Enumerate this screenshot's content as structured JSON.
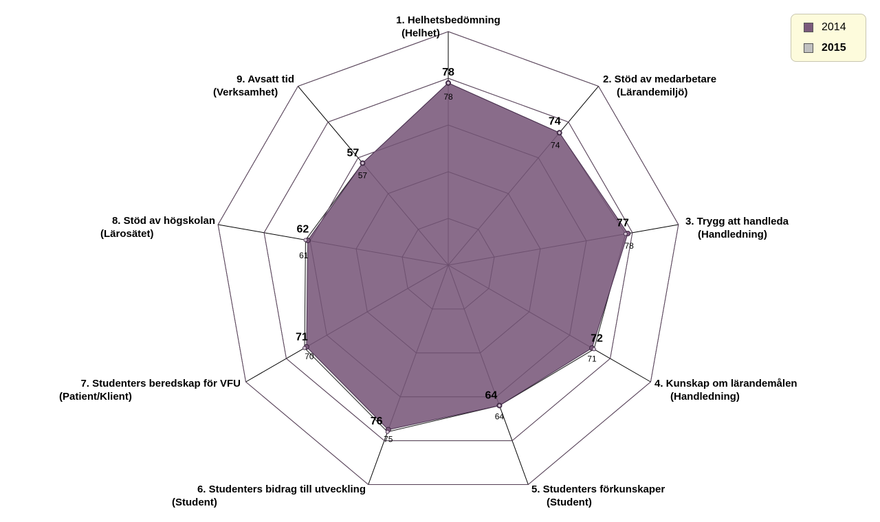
{
  "chart_data": {
    "type": "radar",
    "max": 100,
    "rings": 5,
    "axes": [
      {
        "line1": "1. Helhetsbedömning",
        "line2": "(Helhet)"
      },
      {
        "line1": "2. Stöd av medarbetare",
        "line2": "(Lärandemiljö)"
      },
      {
        "line1": "3. Trygg att handleda",
        "line2": "(Handledning)"
      },
      {
        "line1": "4. Kunskap om lärandemålen",
        "line2": "(Handledning)"
      },
      {
        "line1": "5. Studenters förkunskaper",
        "line2": "(Student)"
      },
      {
        "line1": "6. Studenters bidrag till utveckling",
        "line2": "(Student)"
      },
      {
        "line1": "7. Studenters beredskap för VFU",
        "line2": "(Patient/Klient)"
      },
      {
        "line1": "8. Stöd av högskolan",
        "line2": "(Lärosätet)"
      },
      {
        "line1": "9. Avsatt tid",
        "line2": "(Verksamhet)"
      }
    ],
    "series": [
      {
        "name": "2014",
        "values": [
          78,
          74,
          78,
          71,
          64,
          75,
          70,
          61,
          57
        ],
        "color": "#7b5a7c"
      },
      {
        "name": "2015",
        "values": [
          78,
          74,
          77,
          72,
          64,
          76,
          71,
          62,
          57
        ],
        "color": "#c0c0c0"
      }
    ],
    "legend_position": "top-right"
  },
  "legend": {
    "items": [
      {
        "label": "2014",
        "color": "#7b5a7c",
        "bold": false
      },
      {
        "label": "2015",
        "color": "#c0c0c0",
        "bold": true
      }
    ]
  }
}
